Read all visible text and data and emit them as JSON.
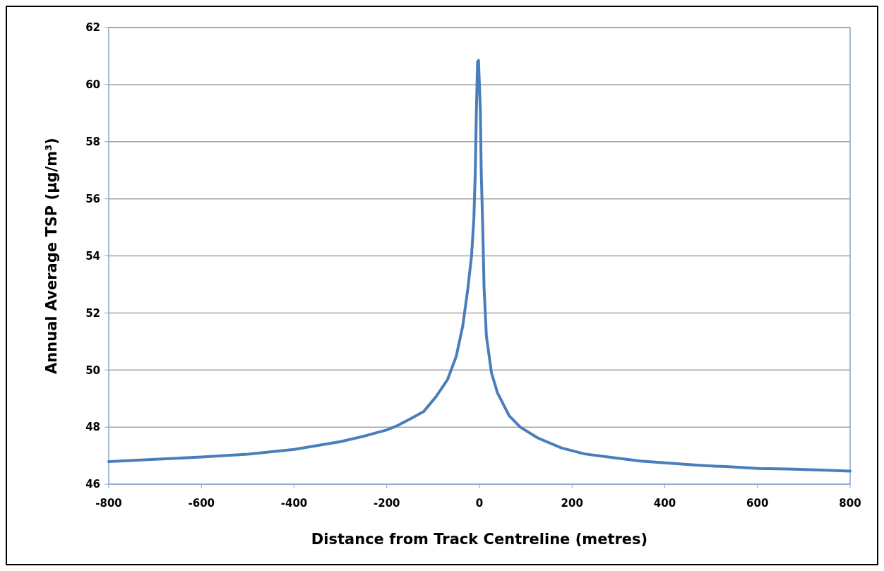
{
  "chart_data": {
    "type": "line",
    "xlabel": "Distance from Track Centreline (metres)",
    "ylabel": "Annual Average TSP  (µg/m³)",
    "xlim": [
      -800,
      800
    ],
    "xticks": [
      -800,
      -600,
      -400,
      -200,
      0,
      200,
      400,
      600,
      800
    ],
    "ylim": [
      46,
      62
    ],
    "yticks": [
      46,
      48,
      50,
      52,
      54,
      56,
      58,
      60,
      62
    ],
    "grid": "y",
    "marker": "none",
    "line_style": "solid",
    "series": [
      {
        "color": "#4a7ebb",
        "x": [
          -800,
          -700,
          -600,
          -500,
          -400,
          -300,
          -250,
          -200,
          -180,
          -150,
          -120,
          -93,
          -69,
          -50,
          -36,
          -25,
          -17,
          -12,
          -9,
          -6.5,
          -4,
          -2,
          2,
          4,
          7,
          10,
          15,
          26,
          39,
          64,
          88,
          126,
          177,
          227,
          284,
          348,
          405,
          475,
          538,
          602,
          665,
          729,
          800
        ],
        "values": [
          46.79,
          46.87,
          46.95,
          47.05,
          47.22,
          47.49,
          47.68,
          47.9,
          48.03,
          48.28,
          48.55,
          49.08,
          49.66,
          50.48,
          51.54,
          52.85,
          54,
          55.3,
          56.9,
          59.1,
          60.8,
          60.85,
          59.1,
          56.9,
          55.1,
          52.9,
          51.2,
          49.9,
          49.2,
          48.4,
          48.0,
          47.62,
          47.27,
          47.06,
          46.94,
          46.81,
          46.74,
          46.66,
          46.61,
          46.55,
          46.53,
          46.5,
          46.46
        ]
      }
    ]
  }
}
